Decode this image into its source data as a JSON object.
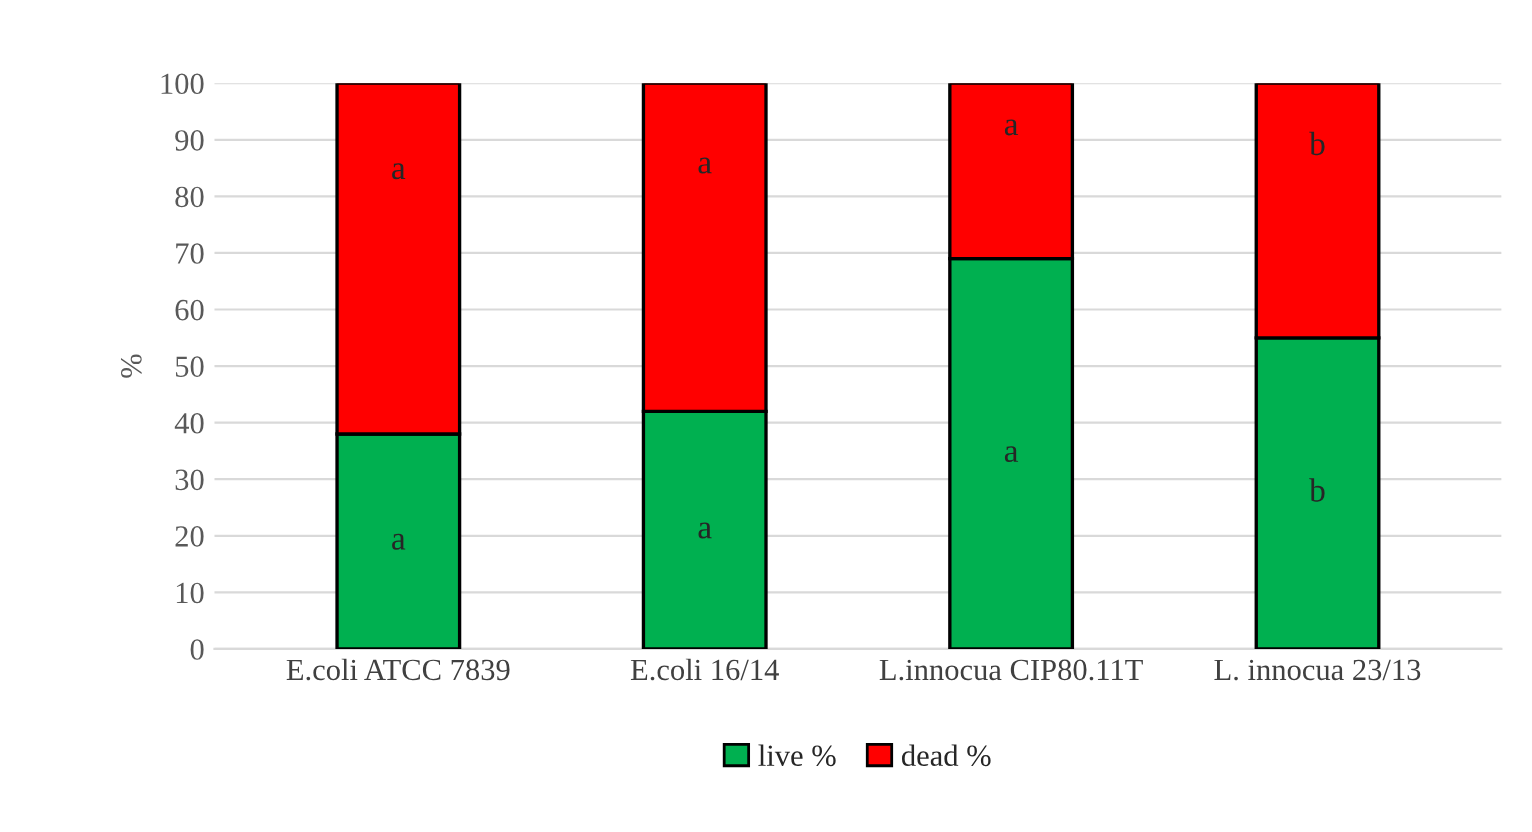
{
  "chart_data": {
    "type": "bar",
    "stacked": true,
    "ylabel": "%",
    "categories": [
      "E.coli ATCC 7839",
      "E.coli 16/14",
      "L.innocua CIP80.11T",
      "L. innocua 23/13"
    ],
    "series": [
      {
        "name": "live %",
        "color": "#00b050",
        "values": [
          38,
          42,
          69,
          55
        ]
      },
      {
        "name": "dead %",
        "color": "#ff0000",
        "values": [
          62,
          58,
          31,
          45
        ]
      }
    ],
    "ylim": [
      0,
      100
    ],
    "yticks": [
      0,
      10,
      20,
      30,
      40,
      50,
      60,
      70,
      80,
      90,
      100
    ],
    "grid": "y",
    "legend": "bottom",
    "annotations": [
      "a",
      "a",
      "a",
      "b",
      "a",
      "a",
      "a",
      "b"
    ]
  }
}
